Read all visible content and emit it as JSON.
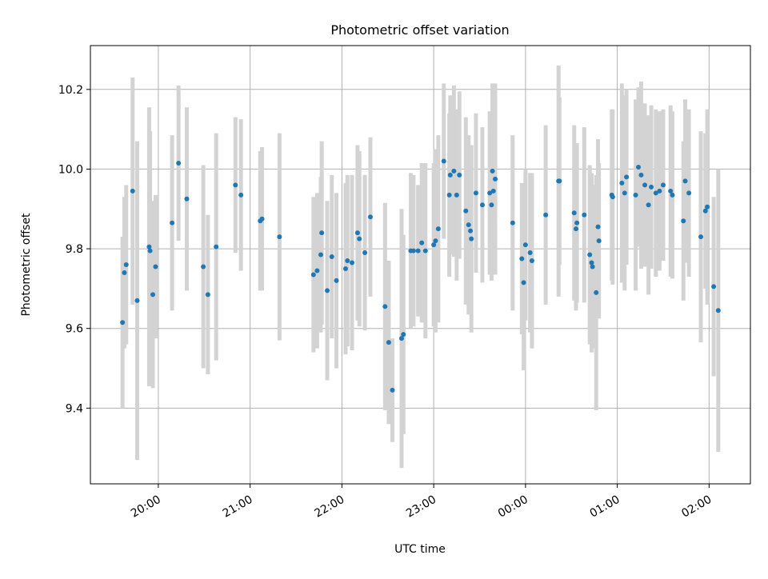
{
  "chart_data": {
    "type": "scatter",
    "title": "Photometric offset variation",
    "xlabel": "UTC time",
    "ylabel": "Photometric offset",
    "x_tick_labels": [
      "20:00",
      "21:00",
      "22:00",
      "23:00",
      "00:00",
      "01:00",
      "02:00"
    ],
    "y_tick_labels": [
      "9.4",
      "9.6",
      "9.8",
      "10.0",
      "10.2"
    ],
    "y_ticks": [
      9.4,
      9.6,
      9.8,
      10.0,
      10.2
    ],
    "x_ticks_hours": [
      20,
      21,
      22,
      23,
      24,
      25,
      26
    ],
    "xlim_hours": [
      19.26,
      26.45
    ],
    "ylim": [
      9.21,
      10.31
    ],
    "grid": true,
    "error_bar_color": "#d3d3d3",
    "point_color": "#1f77b4",
    "series": [
      {
        "x_hours": [
          19.61,
          19.63,
          19.65,
          19.72,
          19.77,
          19.9,
          19.91,
          19.94,
          19.97,
          20.15,
          20.22,
          20.31,
          20.49,
          20.54,
          20.63,
          20.84,
          20.9,
          21.11,
          21.13,
          21.32,
          21.69,
          21.73,
          21.77,
          21.78,
          21.84,
          21.89,
          21.94,
          22.04,
          22.06,
          22.11,
          22.17,
          22.19,
          22.25,
          22.31,
          22.47,
          22.51,
          22.55,
          22.65,
          22.67,
          22.75,
          22.78,
          22.83,
          22.87,
          22.91,
          23.0,
          23.02,
          23.05,
          23.11,
          23.17,
          23.18,
          23.22,
          23.25,
          23.28,
          23.35,
          23.38,
          23.4,
          23.41,
          23.46,
          23.53,
          23.61,
          23.63,
          23.64,
          23.65,
          23.67,
          23.86,
          23.96,
          23.98,
          24.0,
          24.05,
          24.07,
          24.22,
          24.36,
          24.37,
          24.53,
          24.55,
          24.56,
          24.64,
          24.7,
          24.72,
          24.73,
          24.77,
          24.79,
          24.8,
          24.94,
          24.95,
          25.05,
          25.08,
          25.1,
          25.2,
          25.23,
          25.26,
          25.3,
          25.34,
          25.37,
          25.42,
          25.46,
          25.5,
          25.58,
          25.6,
          25.72,
          25.74,
          25.78,
          25.91,
          25.96,
          25.98,
          26.05,
          26.1
        ],
        "y": [
          9.615,
          9.74,
          9.76,
          9.945,
          9.67,
          9.805,
          9.795,
          9.685,
          9.755,
          9.865,
          10.015,
          9.925,
          9.755,
          9.685,
          9.805,
          9.96,
          9.935,
          9.87,
          9.875,
          9.83,
          9.735,
          9.745,
          9.785,
          9.84,
          9.695,
          9.78,
          9.72,
          9.75,
          9.77,
          9.765,
          9.84,
          9.825,
          9.79,
          9.88,
          9.655,
          9.565,
          9.445,
          9.575,
          9.585,
          9.795,
          9.795,
          9.795,
          9.815,
          9.795,
          9.81,
          9.82,
          9.85,
          10.02,
          9.935,
          9.985,
          9.995,
          9.935,
          9.985,
          9.895,
          9.86,
          9.845,
          9.825,
          9.94,
          9.91,
          9.94,
          9.91,
          9.995,
          9.945,
          9.975,
          9.865,
          9.775,
          9.715,
          9.81,
          9.79,
          9.77,
          9.885,
          9.97,
          9.97,
          9.89,
          9.85,
          9.865,
          9.885,
          9.785,
          9.765,
          9.755,
          9.69,
          9.855,
          9.82,
          9.935,
          9.93,
          9.965,
          9.94,
          9.98,
          9.935,
          10.005,
          9.985,
          9.96,
          9.91,
          9.955,
          9.94,
          9.945,
          9.96,
          9.945,
          9.935,
          9.87,
          9.97,
          9.94,
          9.83,
          9.895,
          9.905,
          9.705,
          9.645
        ],
        "err": [
          0.215,
          0.19,
          0.2,
          0.285,
          0.4,
          0.35,
          0.3,
          0.235,
          0.18,
          0.22,
          0.195,
          0.23,
          0.255,
          0.2,
          0.285,
          0.17,
          0.19,
          0.175,
          0.18,
          0.26,
          0.195,
          0.195,
          0.195,
          0.23,
          0.225,
          0.205,
          0.22,
          0.215,
          0.215,
          0.22,
          0.22,
          0.22,
          0.195,
          0.2,
          0.26,
          0.205,
          0.13,
          0.325,
          0.25,
          0.195,
          0.19,
          0.165,
          0.2,
          0.22,
          0.205,
          0.23,
          0.235,
          0.195,
          0.205,
          0.2,
          0.215,
          0.215,
          0.21,
          0.235,
          0.225,
          0.21,
          0.235,
          0.2,
          0.195,
          0.205,
          0.19,
          0.22,
          0.21,
          0.24,
          0.22,
          0.19,
          0.22,
          0.19,
          0.2,
          0.22,
          0.225,
          0.29,
          0.21,
          0.22,
          0.205,
          0.2,
          0.22,
          0.225,
          0.225,
          0.205,
          0.295,
          0.22,
          0.195,
          0.215,
          0.22,
          0.25,
          0.245,
          0.22,
          0.24,
          0.2,
          0.235,
          0.205,
          0.225,
          0.205,
          0.21,
          0.2,
          0.19,
          0.215,
          0.21,
          0.2,
          0.205,
          0.21,
          0.265,
          0.195,
          0.245,
          0.225,
          0.355
        ]
      }
    ]
  }
}
